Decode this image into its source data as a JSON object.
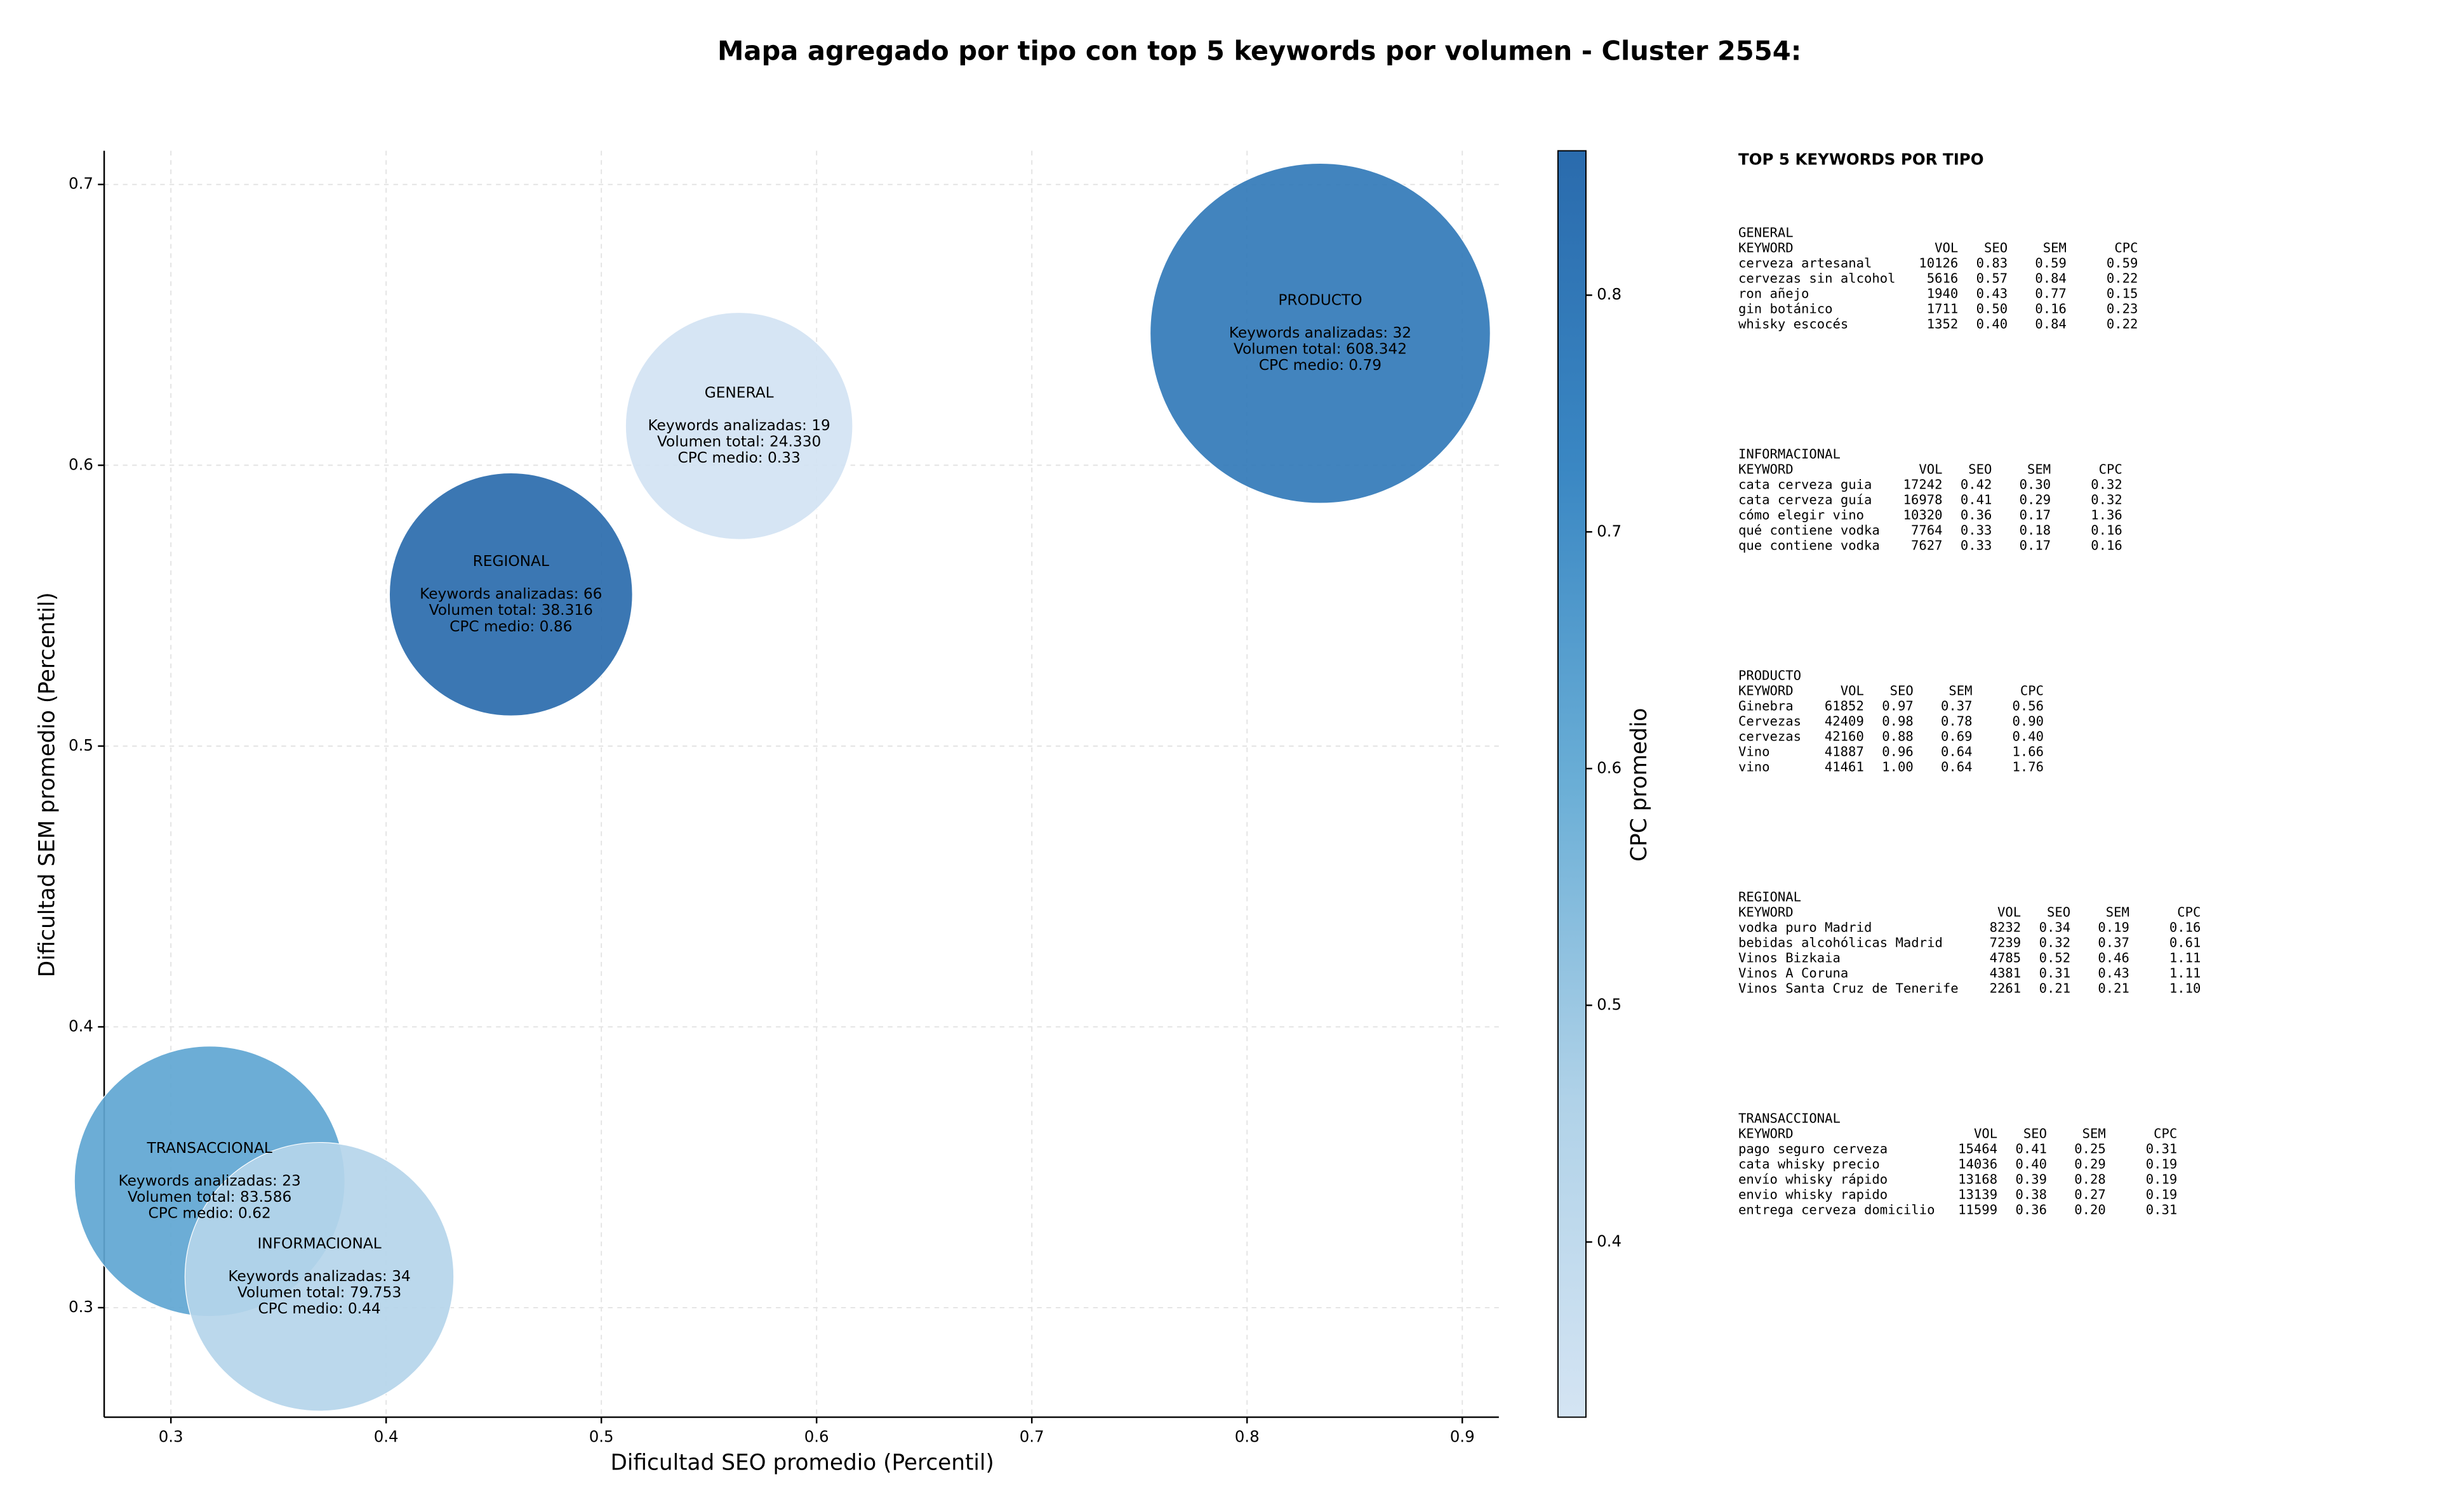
{
  "chart_data": {
    "type": "bubble",
    "title": "Mapa agregado por tipo con top 5 keywords por volumen - Cluster 2554:",
    "xlabel": "Dificultad SEO promedio (Percentil)",
    "ylabel": "Dificultad SEM promedio (Percentil)",
    "xlim": [
      0.269,
      0.917
    ],
    "ylim": [
      0.261,
      0.712
    ],
    "xticks": [
      0.3,
      0.4,
      0.5,
      0.6,
      0.7,
      0.8,
      0.9
    ],
    "yticks": [
      0.3,
      0.4,
      0.5,
      0.6,
      0.7
    ],
    "grid": true,
    "categories": [
      "PRODUCTO",
      "GENERAL",
      "REGIONAL",
      "TRANSACCIONAL",
      "INFORMACIONAL"
    ],
    "x": [
      0.834,
      0.564,
      0.458,
      0.318,
      0.369
    ],
    "values": [
      0.647,
      0.614,
      0.554,
      0.345,
      0.311
    ],
    "sizes": [
      608342,
      24330,
      38316,
      83586,
      79753
    ],
    "cpc": [
      0.79,
      0.33,
      0.86,
      0.62,
      0.44
    ],
    "annotations": [
      [
        "Keywords analizadas: 32",
        "Volumen total: 608.342",
        "CPC medio: 0.79"
      ],
      [
        "Keywords analizadas: 19",
        "Volumen total: 24.330",
        "CPC medio: 0.33"
      ],
      [
        "Keywords analizadas: 66",
        "Volumen total: 38.316",
        "CPC medio: 0.86"
      ],
      [
        "Keywords analizadas: 23",
        "Volumen total: 83.586",
        "CPC medio: 0.62"
      ],
      [
        "Keywords analizadas: 34",
        "Volumen total: 79.753",
        "CPC medio: 0.44"
      ]
    ],
    "colorbar": {
      "label": "CPC promedio",
      "lim": [
        0.326,
        0.861
      ],
      "ticks": [
        0.4,
        0.5,
        0.6,
        0.7,
        0.8
      ],
      "colormap": [
        "#d4e4f3",
        "#b0d2e8",
        "#6aaed6",
        "#3a87c3",
        "#2a6bad"
      ]
    }
  },
  "keyword_panel": {
    "title": "TOP 5 KEYWORDS POR TIPO",
    "sections": [
      {
        "name": "GENERAL",
        "columns": [
          "KEYWORD",
          "VOL",
          "SEO",
          "SEM",
          "CPC"
        ],
        "rows": [
          [
            "cerveza artesanal",
            "10126",
            "0.83",
            "0.59",
            "0.59"
          ],
          [
            "cervezas sin alcohol",
            "5616",
            "0.57",
            "0.84",
            "0.22"
          ],
          [
            "ron añejo",
            "1940",
            "0.43",
            "0.77",
            "0.15"
          ],
          [
            "gin botánico",
            "1711",
            "0.50",
            "0.16",
            "0.23"
          ],
          [
            "whisky escocés",
            "1352",
            "0.40",
            "0.84",
            "0.22"
          ]
        ]
      },
      {
        "name": "INFORMACIONAL",
        "columns": [
          "KEYWORD",
          "VOL",
          "SEO",
          "SEM",
          "CPC"
        ],
        "rows": [
          [
            "cata cerveza guia",
            "17242",
            "0.42",
            "0.30",
            "0.32"
          ],
          [
            "cata cerveza guía",
            "16978",
            "0.41",
            "0.29",
            "0.32"
          ],
          [
            "cómo elegir vino",
            "10320",
            "0.36",
            "0.17",
            "1.36"
          ],
          [
            "qué contiene vodka",
            "7764",
            "0.33",
            "0.18",
            "0.16"
          ],
          [
            "que contiene vodka",
            "7627",
            "0.33",
            "0.17",
            "0.16"
          ]
        ]
      },
      {
        "name": "PRODUCTO",
        "columns": [
          "KEYWORD",
          "VOL",
          "SEO",
          "SEM",
          "CPC"
        ],
        "rows": [
          [
            "Ginebra",
            "61852",
            "0.97",
            "0.37",
            "0.56"
          ],
          [
            "Cervezas",
            "42409",
            "0.98",
            "0.78",
            "0.90"
          ],
          [
            "cervezas",
            "42160",
            "0.88",
            "0.69",
            "0.40"
          ],
          [
            "Vino",
            "41887",
            "0.96",
            "0.64",
            "1.66"
          ],
          [
            "vino",
            "41461",
            "1.00",
            "0.64",
            "1.76"
          ]
        ]
      },
      {
        "name": "REGIONAL",
        "columns": [
          "KEYWORD",
          "VOL",
          "SEO",
          "SEM",
          "CPC"
        ],
        "rows": [
          [
            "vodka puro Madrid",
            "8232",
            "0.34",
            "0.19",
            "0.16"
          ],
          [
            "bebidas alcohólicas Madrid",
            "7239",
            "0.32",
            "0.37",
            "0.61"
          ],
          [
            "Vinos Bizkaia",
            "4785",
            "0.52",
            "0.46",
            "1.11"
          ],
          [
            "Vinos A Coruna",
            "4381",
            "0.31",
            "0.43",
            "1.11"
          ],
          [
            "Vinos Santa Cruz de Tenerife",
            "2261",
            "0.21",
            "0.21",
            "1.10"
          ]
        ]
      },
      {
        "name": "TRANSACCIONAL",
        "columns": [
          "KEYWORD",
          "VOL",
          "SEO",
          "SEM",
          "CPC"
        ],
        "rows": [
          [
            "pago seguro cerveza",
            "15464",
            "0.41",
            "0.25",
            "0.31"
          ],
          [
            "cata whisky precio",
            "14036",
            "0.40",
            "0.29",
            "0.19"
          ],
          [
            "envío whisky rápido",
            "13168",
            "0.39",
            "0.28",
            "0.19"
          ],
          [
            "envio whisky rapido",
            "13139",
            "0.38",
            "0.27",
            "0.19"
          ],
          [
            "entrega cerveza domicilio",
            "11599",
            "0.36",
            "0.20",
            "0.31"
          ]
        ]
      }
    ]
  }
}
